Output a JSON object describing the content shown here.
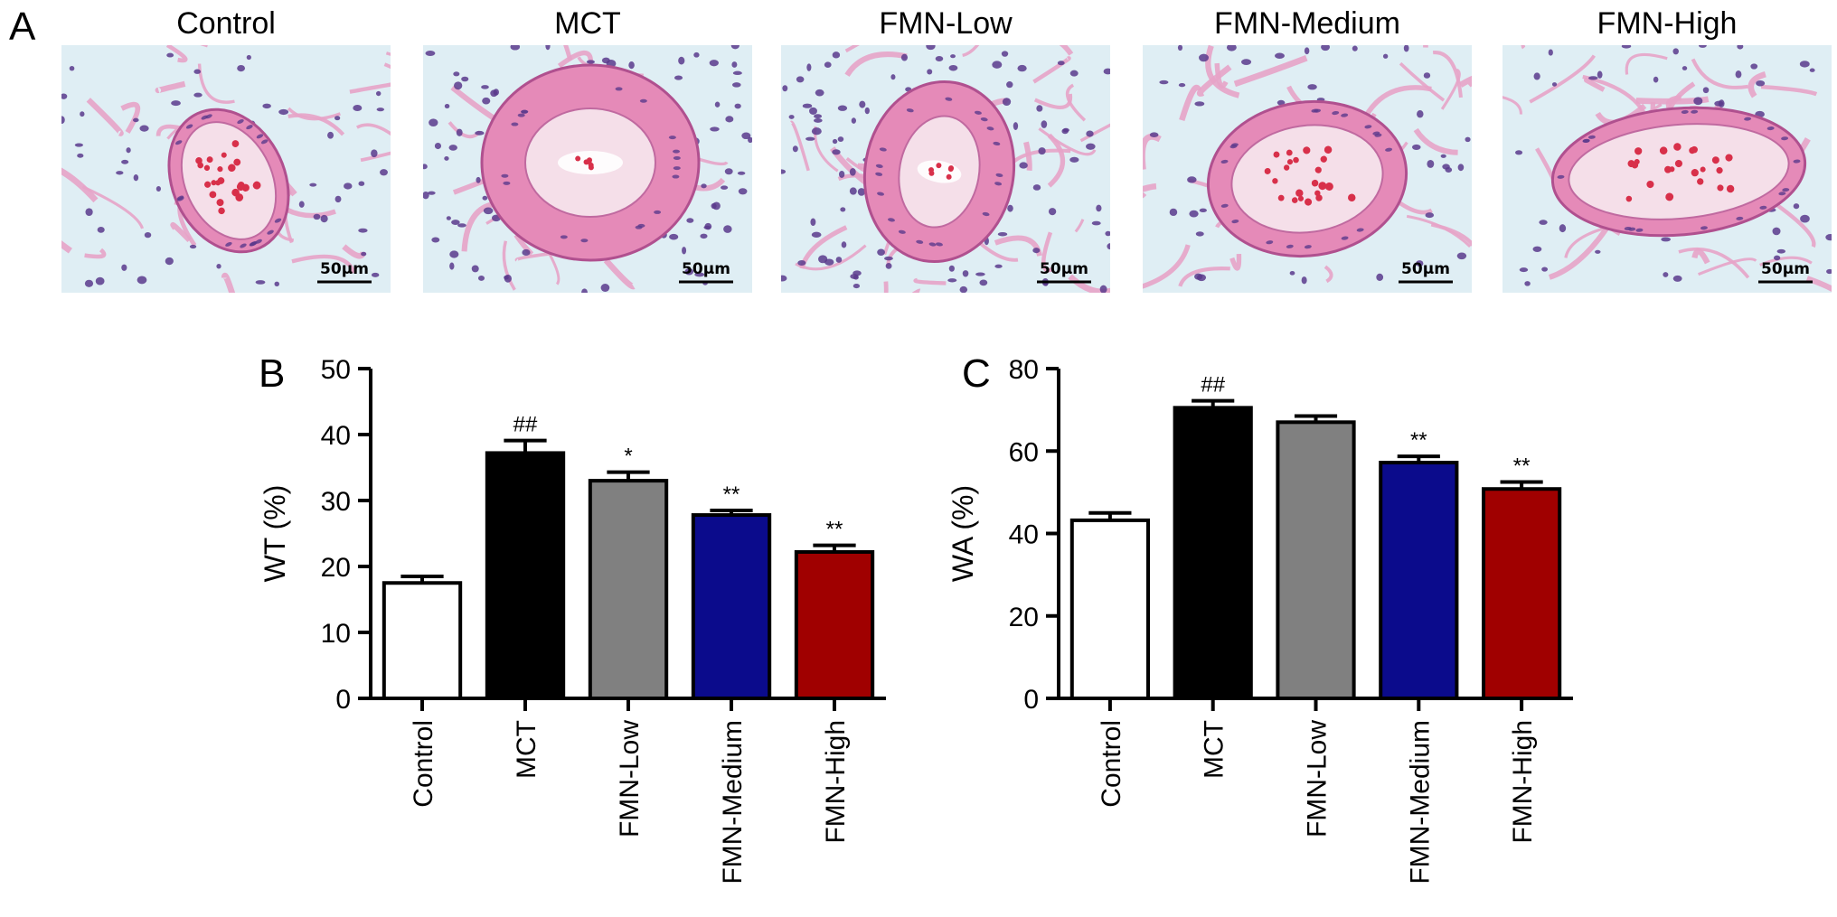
{
  "panel_letters": {
    "a": "A",
    "b": "B",
    "c": "C"
  },
  "micrographs": {
    "scale_bar": "50μm",
    "titles": [
      "Control",
      "MCT",
      "FMN-Low",
      "FMN-Medium",
      "FMN-High"
    ],
    "colors": {
      "background": "#dfeef4",
      "tissue": "#e7a3c8",
      "nuclei": "#5b3a8c",
      "rbc": "#d8304a"
    }
  },
  "chart_data": [
    {
      "type": "bar",
      "panel": "B",
      "categories": [
        "Control",
        "MCT",
        "FMN-Low",
        "FMN-Medium",
        "FMN-High"
      ],
      "values": [
        17.5,
        37.2,
        33.0,
        27.8,
        22.2
      ],
      "errors": [
        1.0,
        1.9,
        1.3,
        0.7,
        1.0
      ],
      "significance": [
        "",
        "##",
        "*",
        "**",
        "**"
      ],
      "colors": [
        "#ffffff",
        "#000000",
        "#808080",
        "#0b0b8c",
        "#a00000"
      ],
      "xlabel": "",
      "ylabel": "WT (%)",
      "ylim": [
        0,
        50
      ],
      "yticks": [
        0,
        10,
        20,
        30,
        40,
        50
      ],
      "grid": false
    },
    {
      "type": "bar",
      "panel": "C",
      "categories": [
        "Control",
        "MCT",
        "FMN-Low",
        "FMN-Medium",
        "FMN-High"
      ],
      "values": [
        43.2,
        70.5,
        67.0,
        57.2,
        50.8
      ],
      "errors": [
        1.8,
        1.7,
        1.5,
        1.5,
        1.7
      ],
      "significance": [
        "",
        "##",
        "",
        "**",
        "**"
      ],
      "colors": [
        "#ffffff",
        "#000000",
        "#808080",
        "#0b0b8c",
        "#a00000"
      ],
      "xlabel": "",
      "ylabel": "WA (%)",
      "ylim": [
        0,
        80
      ],
      "yticks": [
        0,
        20,
        40,
        60,
        80
      ],
      "grid": false
    }
  ]
}
